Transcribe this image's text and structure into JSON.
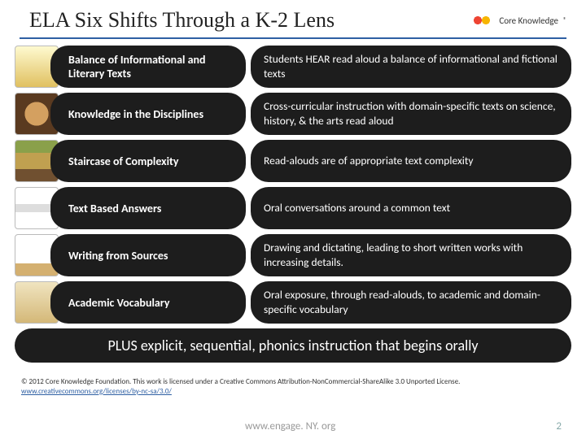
{
  "title": "ELA Six Shifts Through a K-2 Lens",
  "logo_text": "Core Knowledge",
  "rows": [
    {
      "label": "Balance of Informational and Literary Texts",
      "desc": "Students HEAR read aloud a balance of informational and fictional texts"
    },
    {
      "label": "Knowledge in the Disciplines",
      "desc": "Cross-curricular instruction with domain-specific texts on science, history, & the arts read aloud"
    },
    {
      "label": "Staircase of Complexity",
      "desc": "Read-alouds are of appropriate text complexity"
    },
    {
      "label": "Text Based Answers",
      "desc": "Oral conversations around a common text"
    },
    {
      "label": "Writing from Sources",
      "desc": "Drawing and dictating, leading to short written works with increasing details."
    },
    {
      "label": "Academic Vocabulary",
      "desc": "Oral exposure, through read-alouds, to academic and domain-specific vocabulary"
    }
  ],
  "plus_line": "PLUS explicit, sequential, phonics instruction that begins orally",
  "license": "© 2012 Core Knowledge Foundation. This work is licensed under a Creative Commons Attribution-NonCommercial-ShareAlike 3.0 Unported License.",
  "license_link_text": "www.creativecommons.org/licenses/by-nc-sa/3.0/",
  "footer_url": "www.engage. NY. org",
  "page_number": "2",
  "colors": {
    "rule": "#2e5fa3",
    "pill_bg": "#1d1d1d",
    "pill_text": "#ffffff"
  }
}
